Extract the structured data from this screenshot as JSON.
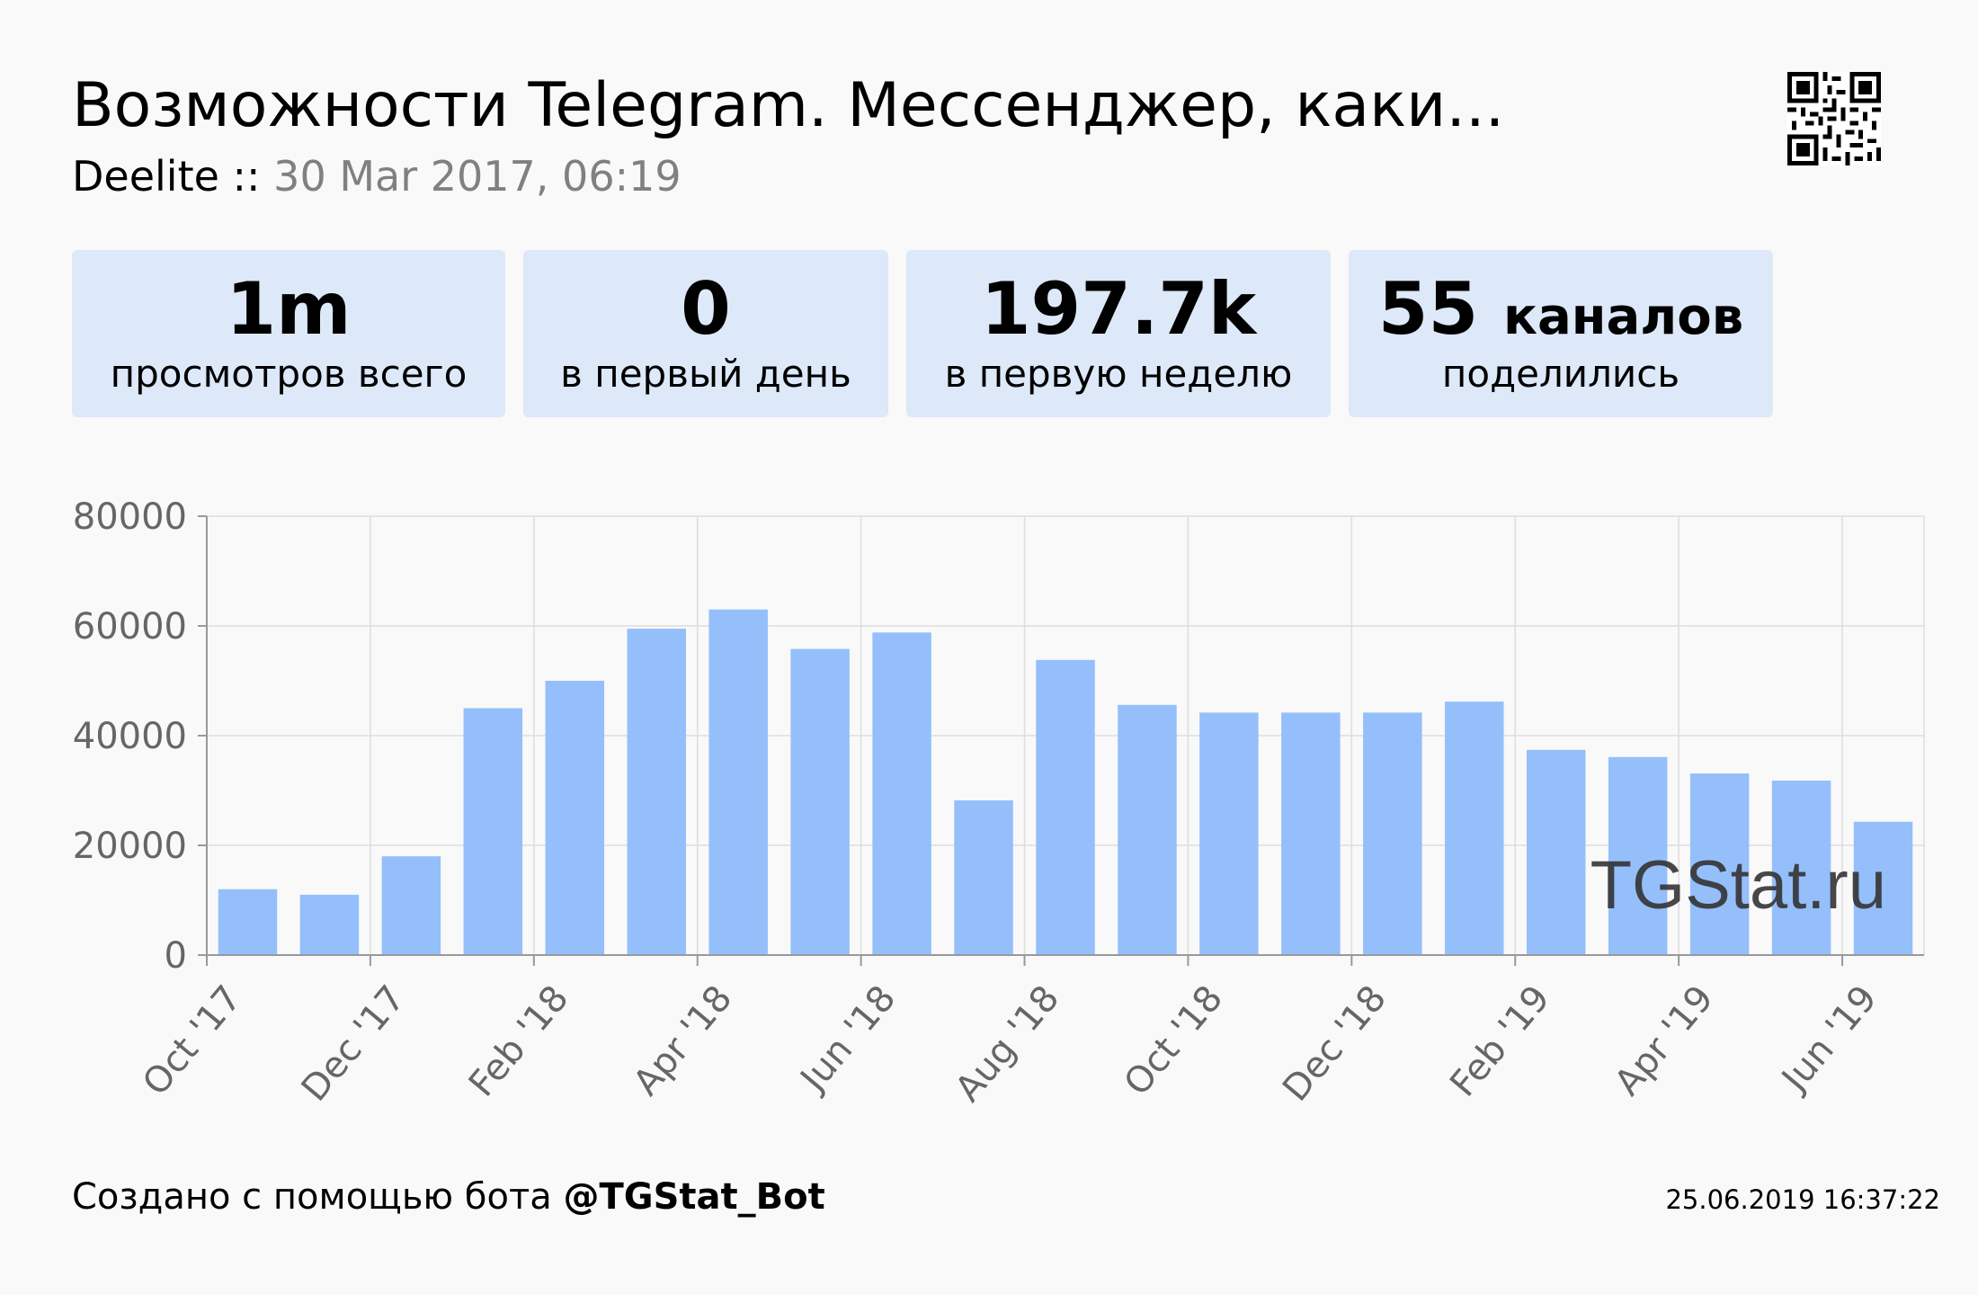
{
  "header": {
    "title": "Возможности Telegram. Мессенджер, каки...",
    "channel": "Deelite",
    "separator": " :: ",
    "date": "30 Mar 2017, 06:19"
  },
  "stats": [
    {
      "value": "1m",
      "unit": "",
      "label": "просмотров всего"
    },
    {
      "value": "0",
      "unit": "",
      "label": "в первый день"
    },
    {
      "value": "197.7k",
      "unit": "",
      "label": "в первую неделю"
    },
    {
      "value": "55",
      "unit": "каналов",
      "label": "поделились"
    }
  ],
  "chart_data": {
    "type": "bar",
    "title": "",
    "xlabel": "",
    "ylabel": "",
    "ylim": [
      0,
      80000
    ],
    "yticks": [
      "0",
      "20000",
      "40000",
      "60000",
      "80000"
    ],
    "grid": true,
    "categories": [
      "Oct '17",
      "Nov '17",
      "Dec '17",
      "Jan '18",
      "Feb '18",
      "Mar '18",
      "Apr '18",
      "May '18",
      "Jun '18",
      "Jul '18",
      "Aug '18",
      "Sep '18",
      "Oct '18",
      "Nov '18",
      "Dec '18",
      "Jan '19",
      "Feb '19",
      "Mar '19",
      "Apr '19",
      "May '19",
      "Jun '19"
    ],
    "xtick_labels": [
      "Oct '17",
      "Dec '17",
      "Feb '18",
      "Apr '18",
      "Jun '18",
      "Aug '18",
      "Oct '18",
      "Dec '18",
      "Feb '19",
      "Apr '19",
      "Jun '19"
    ],
    "values": [
      12000,
      11000,
      18000,
      45000,
      50000,
      59500,
      63000,
      55800,
      58800,
      28200,
      53800,
      45600,
      44200,
      44200,
      44200,
      46200,
      37400,
      36100,
      33100,
      31800,
      24300
    ],
    "bar_color": "#94bffb",
    "watermark": "TGStat.ru"
  },
  "footer": {
    "created_prefix": "Создано с помощью бота ",
    "bot_name": "@TGStat_Bot",
    "timestamp": "25.06.2019 16:37:22"
  }
}
